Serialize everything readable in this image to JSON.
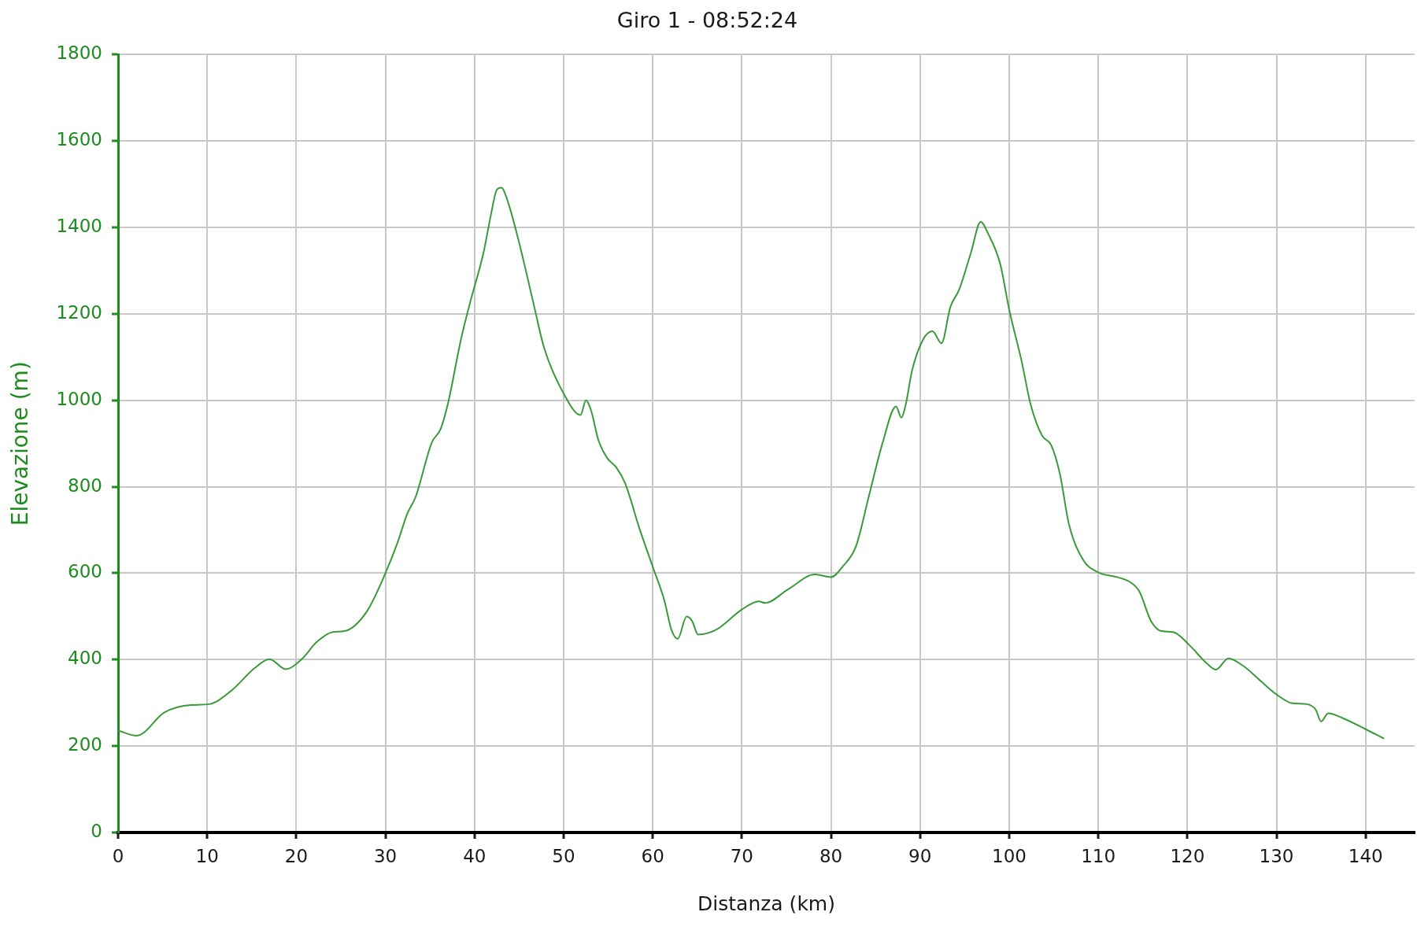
{
  "chart_data": {
    "type": "line",
    "title": "Giro 1 - 08:52:24",
    "xlabel": "Distanza (km)",
    "ylabel": "Elevazione (m)",
    "x": [
      0,
      2.1,
      5.2,
      8.2,
      10.2,
      12.7,
      15.3,
      17,
      18.8,
      20.6,
      22.3,
      24.1,
      25.4,
      27.9,
      30,
      31.4,
      32.4,
      33.4,
      35.2,
      36.2,
      37,
      38.5,
      39.5,
      41,
      41.8,
      42.5,
      43,
      43.8,
      45.1,
      46.6,
      47.8,
      50.1,
      51.9,
      52.5,
      53.1,
      53.9,
      54.9,
      55.9,
      56.9,
      58.5,
      60,
      61.3,
      62.1,
      62.8,
      63.8,
      64.4,
      65.1,
      67.1,
      70,
      71.9,
      72.6,
      75.2,
      78.2,
      80,
      81.3,
      82.8,
      84.3,
      85.8,
      87.3,
      87.9,
      88.4,
      89.1,
      90.4,
      91.4,
      92.4,
      93.4,
      94.4,
      95.7,
      96.8,
      97.7,
      99,
      100,
      101.4,
      102.4,
      103.7,
      104.7,
      105.7,
      106.7,
      108.3,
      110,
      112.1,
      113.6,
      114.6,
      115.9,
      117.1,
      118.4,
      120.2,
      122.2,
      123.2,
      124.6,
      126.3,
      128.3,
      130.1,
      131.8,
      133.4,
      134.4,
      135,
      135.8,
      137.4,
      140,
      142
    ],
    "values": [
      236,
      224,
      278,
      295,
      297,
      328,
      380,
      401,
      378,
      401,
      441,
      464,
      466,
      511,
      600,
      673,
      735,
      777,
      902,
      934,
      991,
      1143,
      1226,
      1341,
      1425,
      1487,
      1492,
      1456,
      1357,
      1226,
      1122,
      1012,
      966,
      1000,
      975,
      908,
      866,
      845,
      808,
      704,
      615,
      537,
      469,
      448,
      500,
      490,
      458,
      469,
      516,
      535,
      531,
      563,
      597,
      591,
      615,
      662,
      782,
      902,
      986,
      960,
      991,
      1069,
      1143,
      1160,
      1132,
      1216,
      1257,
      1341,
      1413,
      1383,
      1315,
      1210,
      1090,
      991,
      918,
      897,
      829,
      714,
      631,
      602,
      591,
      579,
      558,
      490,
      466,
      464,
      434,
      391,
      377,
      403,
      385,
      349,
      318,
      299,
      297,
      284,
      257,
      276,
      265,
      239,
      218
    ],
    "color": "#3a9a3a",
    "xlim": [
      0,
      145.5
    ],
    "ylim": [
      0,
      1800
    ],
    "xticks": [
      0,
      10,
      20,
      30,
      40,
      50,
      60,
      70,
      80,
      90,
      100,
      110,
      120,
      130,
      140
    ],
    "yticks": [
      0,
      200,
      400,
      600,
      800,
      1000,
      1200,
      1400,
      1600,
      1800
    ],
    "grid": true,
    "legend": false,
    "marker": "none",
    "line_style": "solid"
  }
}
